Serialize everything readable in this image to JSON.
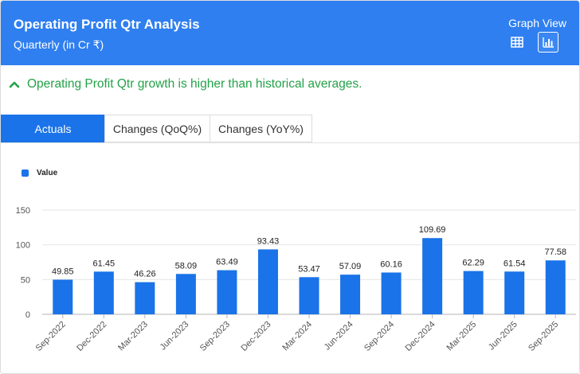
{
  "header": {
    "title": "Operating Profit Qtr Analysis",
    "subtitle": "Quarterly (in Cr ₹)",
    "view_label": "Graph View",
    "table_view_icon": "table-grid-icon",
    "graph_view_icon": "bar-chart-icon"
  },
  "insight": {
    "icon": "chevron-up-icon",
    "text": "Operating Profit Qtr growth is higher than historical averages.",
    "color": "#24a148"
  },
  "tabs": [
    {
      "label": "Actuals",
      "active": true
    },
    {
      "label": "Changes (QoQ%)",
      "active": false
    },
    {
      "label": "Changes (YoY%)",
      "active": false
    }
  ],
  "colors": {
    "header": "#2f7ff0",
    "bar": "#1a73e8",
    "accent": "#1a73e8"
  },
  "chart_data": {
    "type": "bar",
    "legend": "top-left",
    "series": [
      {
        "name": "Value",
        "values": [
          49.85,
          61.45,
          46.26,
          58.09,
          63.49,
          93.43,
          53.47,
          57.09,
          60.16,
          109.69,
          62.29,
          61.54,
          77.58
        ]
      }
    ],
    "categories": [
      "Sep-2022",
      "Dec-2022",
      "Mar-2023",
      "Jun-2023",
      "Sep-2023",
      "Dec-2023",
      "Mar-2024",
      "Jun-2024",
      "Sep-2024",
      "Dec-2024",
      "Mar-2025",
      "Jun-2025",
      "Sep-2025"
    ],
    "value_labels": [
      "49.85",
      "61.45",
      "46.26",
      "58.09",
      "63.49",
      "93.43",
      "53.47",
      "57.09",
      "60.16",
      "109.69",
      "62.29",
      "61.54",
      "77.58"
    ],
    "yticks": [
      "0",
      "50",
      "100",
      "150"
    ],
    "ylim": [
      0,
      150
    ],
    "grid": true
  }
}
